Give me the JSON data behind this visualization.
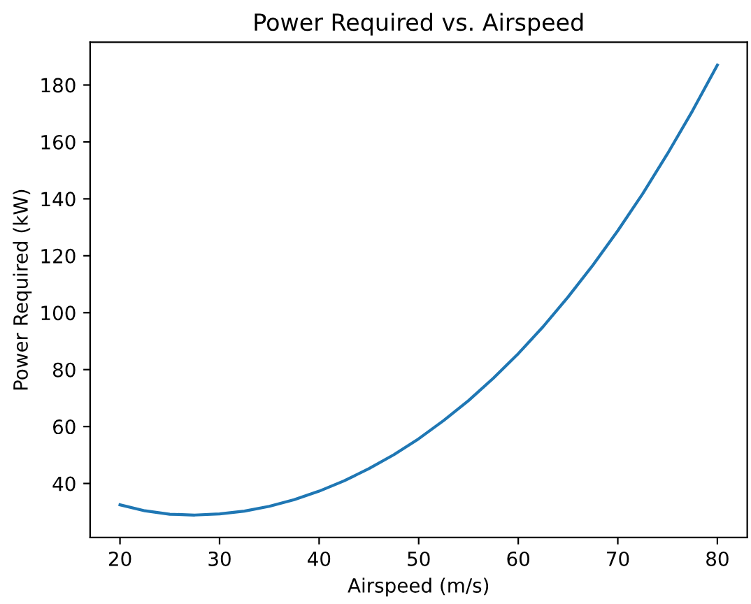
{
  "chart_data": {
    "type": "line",
    "title": "Power Required vs. Airspeed",
    "xlabel": "Airspeed (m/s)",
    "ylabel": "Power Required (kW)",
    "x": [
      20,
      22.5,
      25,
      27.5,
      30,
      32.5,
      35,
      37.5,
      40,
      42.5,
      45,
      47.5,
      50,
      52.5,
      55,
      57.5,
      60,
      62.5,
      65,
      67.5,
      70,
      72.5,
      75,
      77.5,
      80
    ],
    "series": [
      {
        "color": "#1f77b4",
        "values": [
          32.5,
          30.4,
          29.2,
          28.9,
          29.3,
          30.3,
          32.0,
          34.3,
          37.3,
          40.9,
          45.2,
          50.1,
          55.7,
          62.1,
          69.1,
          77.0,
          85.6,
          95.1,
          105.5,
          116.7,
          128.8,
          141.8,
          155.9,
          170.9,
          187.0
        ]
      }
    ],
    "xlim": [
      17,
      83
    ],
    "ylim": [
      21,
      195
    ],
    "xticks": [
      20,
      30,
      40,
      50,
      60,
      70,
      80
    ],
    "yticks": [
      40,
      60,
      80,
      100,
      120,
      140,
      160,
      180
    ],
    "grid": false,
    "legend": false,
    "marker": "none",
    "line_style": "solid"
  }
}
